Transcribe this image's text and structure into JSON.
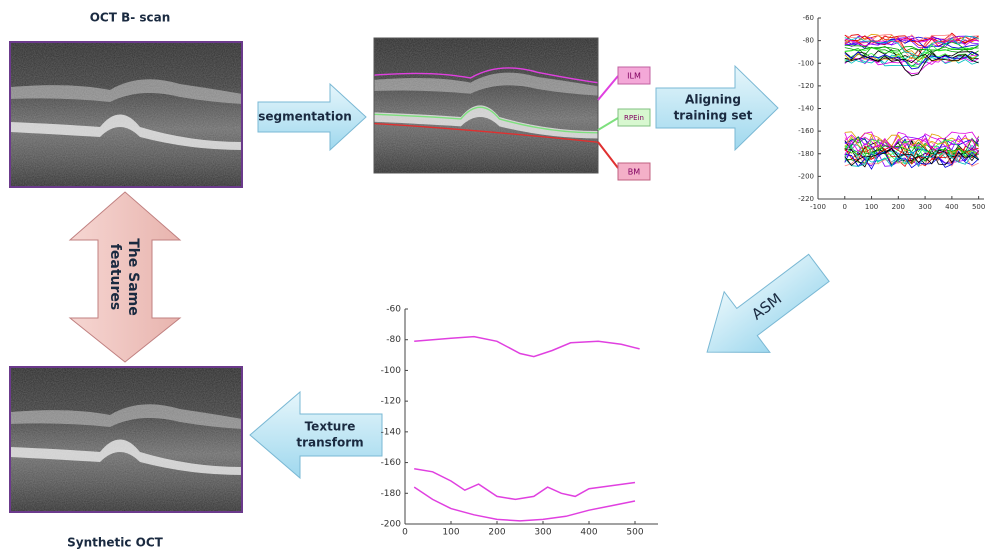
{
  "labels": {
    "oct_title": "OCT B- scan",
    "segmentation": "segmentation",
    "ilm": "ILM",
    "rpe": "RPEin",
    "bm": "BM",
    "aligning_1": "Aligning",
    "aligning_2": "training set",
    "same_1": "The Same",
    "same_2": "features",
    "asm": "ASM",
    "texture_1": "Texture",
    "texture_2": "transform",
    "synthetic_title": "Synthetic OCT"
  },
  "chart_data": [
    {
      "type": "line",
      "xlim": [
        -100,
        520
      ],
      "ylim": [
        -220,
        -60
      ],
      "xticks": [
        -100,
        0,
        100,
        200,
        300,
        400,
        500
      ],
      "yticks": [
        -220,
        -200,
        -180,
        -160,
        -140,
        -120,
        -100,
        -80,
        -60
      ]
    },
    {
      "type": "line",
      "color": "#e040e0",
      "xlim": [
        0,
        550
      ],
      "ylim": [
        -200,
        -60
      ],
      "xticks": [
        0,
        100,
        200,
        300,
        400,
        500
      ],
      "yticks": [
        -200,
        -180,
        -160,
        -140,
        -120,
        -100,
        -80,
        -60
      ],
      "series": [
        {
          "x": [
            20,
            100,
            150,
            200,
            250,
            280,
            320,
            360,
            420,
            470,
            510
          ],
          "values": [
            -81,
            -79,
            -78,
            -81,
            -89,
            -91,
            -87,
            -82,
            -81,
            -83,
            -86
          ]
        },
        {
          "x": [
            20,
            60,
            100,
            130,
            160,
            200,
            240,
            280,
            310,
            340,
            370,
            400,
            450,
            500
          ],
          "values": [
            -164,
            -166,
            -172,
            -178,
            -174,
            -182,
            -184,
            -182,
            -176,
            -180,
            -182,
            -177,
            -175,
            -173
          ]
        },
        {
          "x": [
            20,
            60,
            100,
            150,
            200,
            250,
            300,
            350,
            400,
            450,
            500
          ],
          "values": [
            -176,
            -184,
            -190,
            -194,
            -197,
            -198,
            -197,
            -195,
            -191,
            -188,
            -185
          ]
        }
      ]
    }
  ]
}
